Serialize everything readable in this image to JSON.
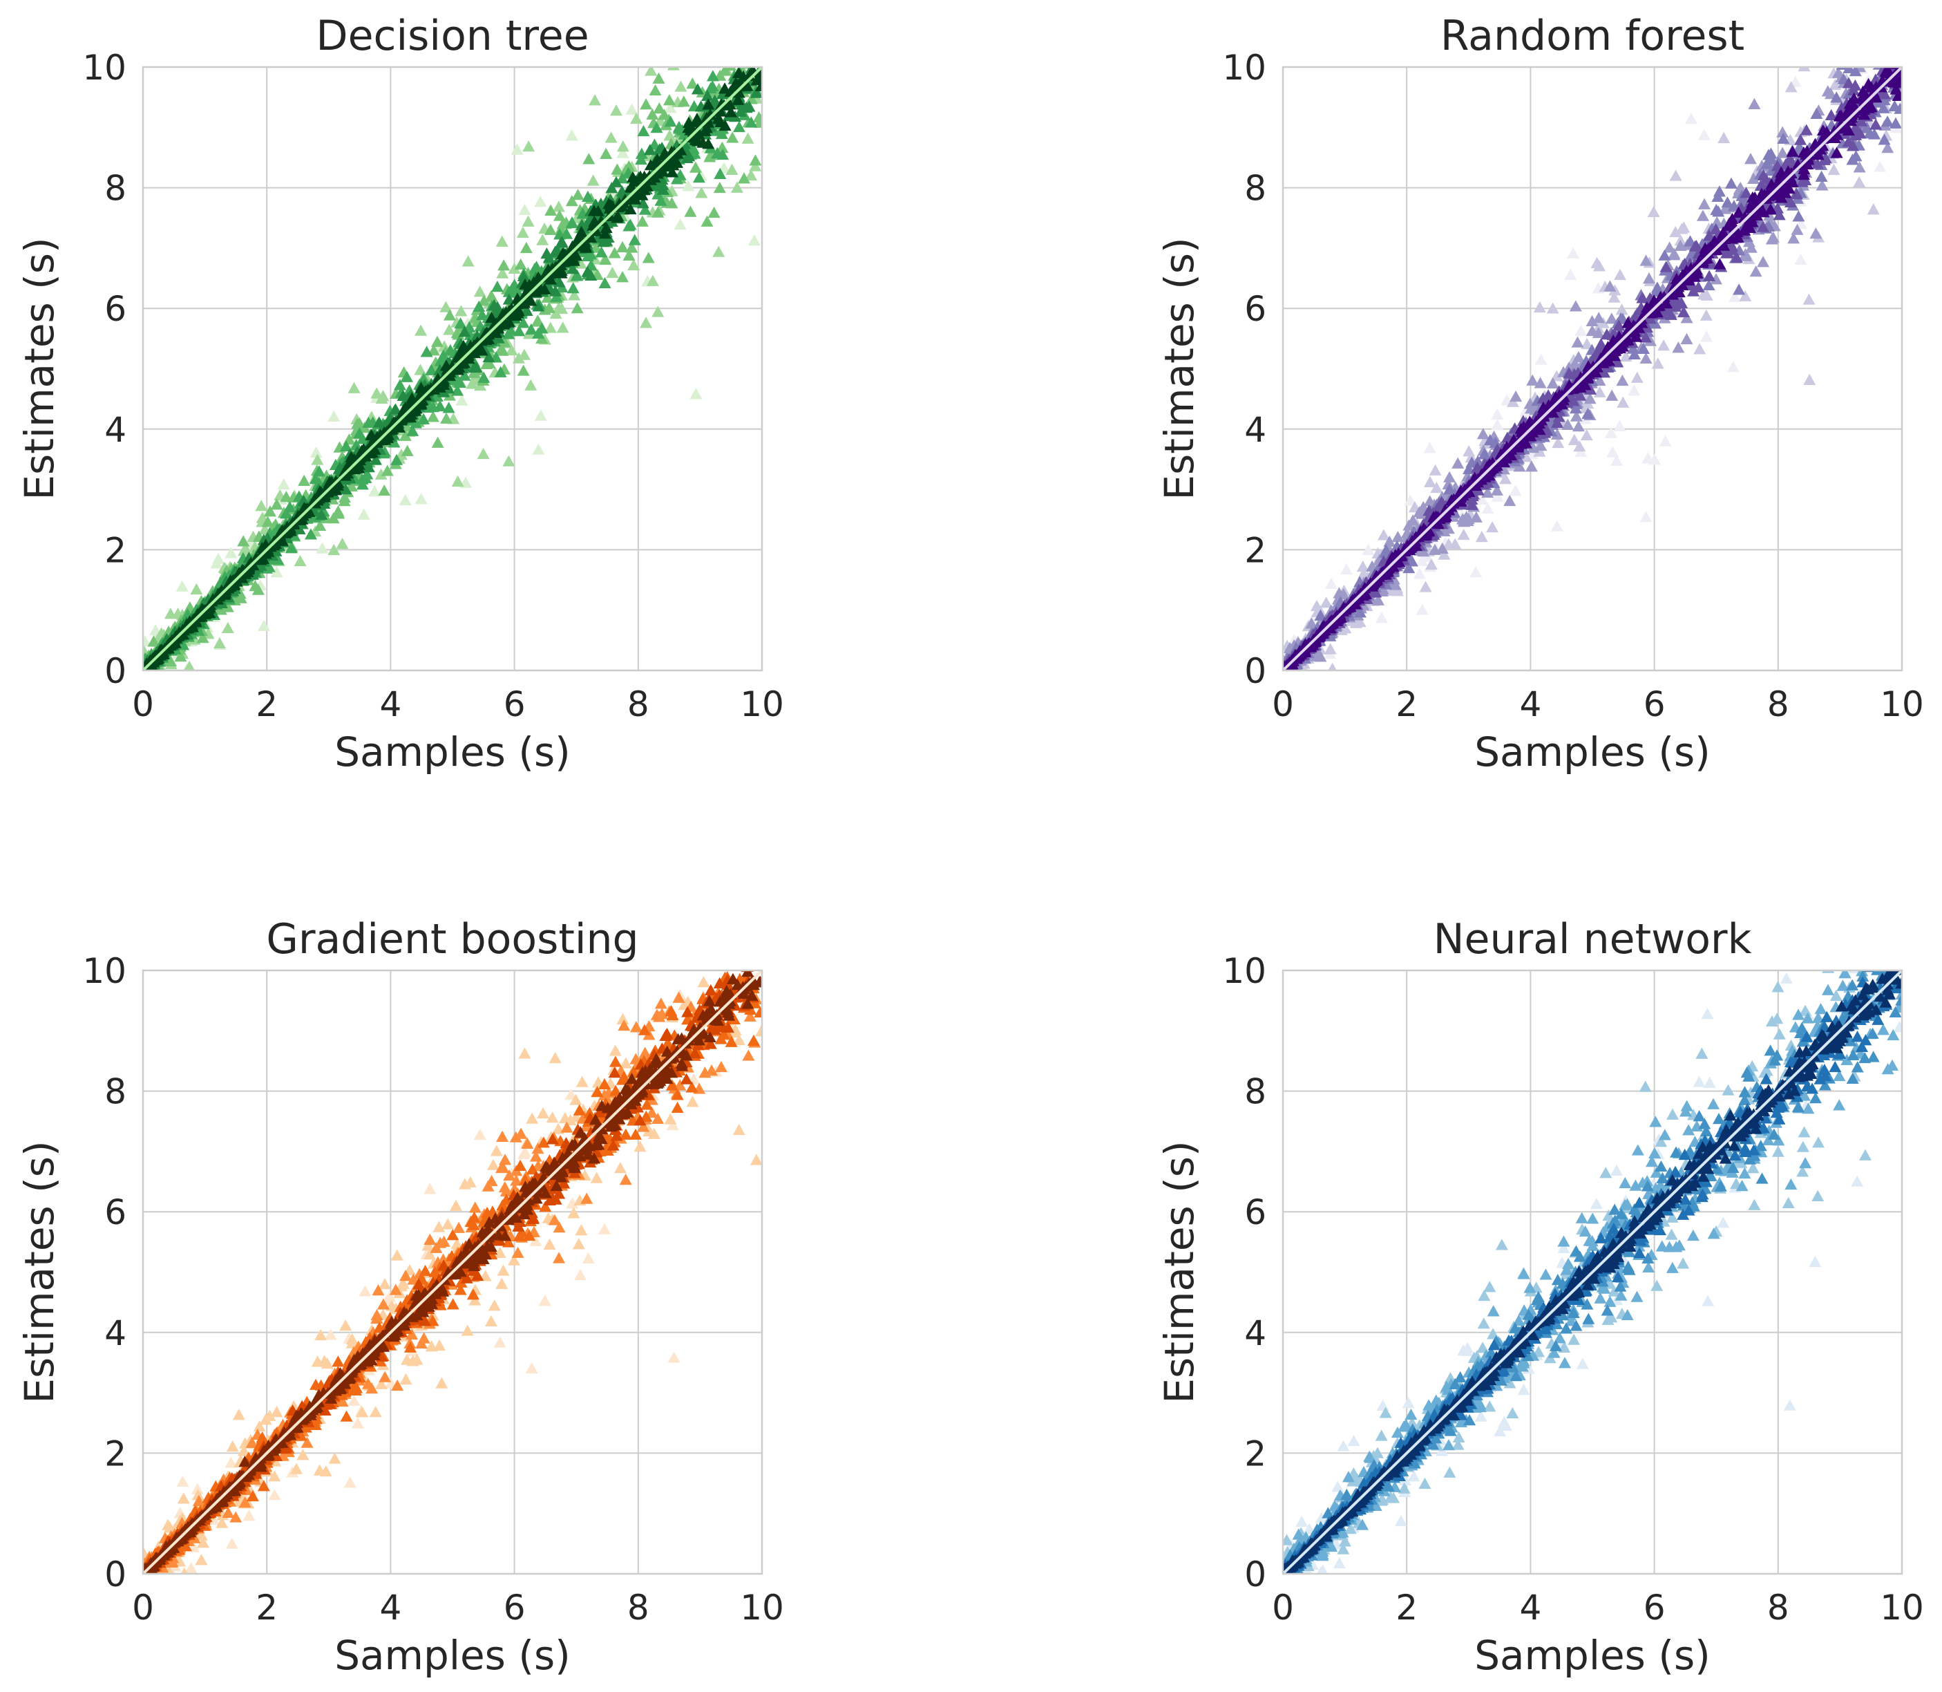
{
  "figure": {
    "description_free": true
  },
  "chart_data": [
    {
      "type": "scatter",
      "title": "Decision tree",
      "xlabel": "Samples (s)",
      "ylabel": "Estimates (s)",
      "xlim": [
        0,
        10
      ],
      "ylim": [
        0,
        10
      ],
      "xticks": [
        "0",
        "2",
        "4",
        "6",
        "8",
        "10"
      ],
      "yticks": [
        "0",
        "2",
        "4",
        "6",
        "8",
        "10"
      ],
      "grid": true,
      "marker": "triangle",
      "colors": [
        "#d9f0d3",
        "#a1d99b",
        "#74c476",
        "#41ab5d",
        "#238b45",
        "#00441b"
      ],
      "spreads": [
        0.9,
        0.55,
        0.35,
        0.22,
        0.12,
        0.06
      ],
      "identity_line_color": "#a8f0a0",
      "identity_line": {
        "x": [
          0,
          10
        ],
        "y": [
          0,
          10
        ]
      }
    },
    {
      "type": "scatter",
      "title": "Random forest",
      "xlabel": "Samples (s)",
      "ylabel": "Estimates (s)",
      "xlim": [
        0,
        10
      ],
      "ylim": [
        0,
        10
      ],
      "xticks": [
        "0",
        "2",
        "4",
        "6",
        "8",
        "10"
      ],
      "yticks": [
        "0",
        "2",
        "4",
        "6",
        "8",
        "10"
      ],
      "grid": true,
      "marker": "triangle",
      "colors": [
        "#efedf5",
        "#cbc9e2",
        "#9e9ac8",
        "#807dba",
        "#6a51a3",
        "#3f007d"
      ],
      "spreads": [
        0.9,
        0.5,
        0.32,
        0.2,
        0.12,
        0.06
      ],
      "identity_line_color": "#e0d8ee",
      "identity_line": {
        "x": [
          0,
          10
        ],
        "y": [
          0,
          10
        ]
      }
    },
    {
      "type": "scatter",
      "title": "Gradient boosting",
      "xlabel": "Samples (s)",
      "ylabel": "Estimates (s)",
      "xlim": [
        0,
        10
      ],
      "ylim": [
        0,
        10
      ],
      "xticks": [
        "0",
        "2",
        "4",
        "6",
        "8",
        "10"
      ],
      "yticks": [
        "0",
        "2",
        "4",
        "6",
        "8",
        "10"
      ],
      "grid": true,
      "marker": "triangle",
      "colors": [
        "#fee6ce",
        "#fdd0a2",
        "#fd8d3c",
        "#f16913",
        "#d94801",
        "#7f2704"
      ],
      "spreads": [
        0.9,
        0.55,
        0.3,
        0.2,
        0.12,
        0.07
      ],
      "identity_line_color": "#fde6d0",
      "identity_line": {
        "x": [
          0,
          10
        ],
        "y": [
          0,
          10
        ]
      }
    },
    {
      "type": "scatter",
      "title": "Neural network",
      "xlabel": "Samples (s)",
      "ylabel": "Estimates (s)",
      "xlim": [
        0,
        10
      ],
      "ylim": [
        0,
        10
      ],
      "xticks": [
        "0",
        "2",
        "4",
        "6",
        "8",
        "10"
      ],
      "yticks": [
        "0",
        "2",
        "4",
        "6",
        "8",
        "10"
      ],
      "grid": true,
      "marker": "triangle",
      "colors": [
        "#deebf7",
        "#9ecae1",
        "#6baed6",
        "#4292c6",
        "#2171b5",
        "#08306b"
      ],
      "spreads": [
        0.9,
        0.55,
        0.35,
        0.22,
        0.12,
        0.07
      ],
      "identity_line_color": "#d6e8f5",
      "identity_line": {
        "x": [
          0,
          10
        ],
        "y": [
          0,
          10
        ]
      }
    }
  ]
}
